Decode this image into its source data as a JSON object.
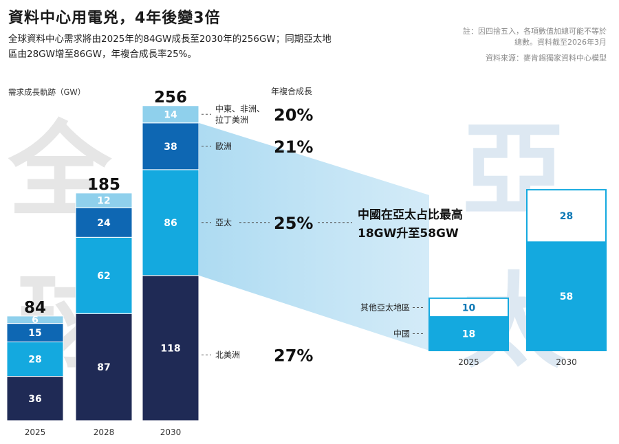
{
  "header": {
    "title": "資料中心用電兇，4年後變3倍",
    "subtitle": "全球資料中心需求將由2025年的84GW成長至2030年的256GW；同期亞太地區由28GW增至86GW，年複合成長率25%。",
    "note": "註：因四捨五入，各項數值加總可能不等於總數。資料截至2026年3月",
    "source": "資料來源：麥肯錫獨家資料中心模型"
  },
  "background_words": [
    "全球",
    "亞太"
  ],
  "chart_data": [
    {
      "type": "bar",
      "stacked": true,
      "ylabel": "需求成長軌跡（GW）",
      "categories": [
        "2025",
        "2028",
        "2030"
      ],
      "totals": [
        84,
        185,
        256
      ],
      "series": [
        {
          "name": "北美洲",
          "values": [
            36,
            87,
            118
          ],
          "color": "#1f2a55"
        },
        {
          "name": "亞太",
          "values": [
            28,
            62,
            86
          ],
          "color": "#14a9df"
        },
        {
          "name": "歐洲",
          "values": [
            15,
            24,
            38
          ],
          "color": "#0e67b3"
        },
        {
          "name": "中東、非洲、拉丁美洲",
          "values": [
            6,
            12,
            14
          ],
          "color": "#8fd0ec"
        }
      ],
      "cagr_header": "年複合成長",
      "cagr": [
        {
          "region": "中東、非洲、拉丁美洲",
          "value": "20%"
        },
        {
          "region": "歐洲",
          "value": "21%"
        },
        {
          "region": "亞太",
          "value": "25%"
        },
        {
          "region": "北美洲",
          "value": "27%"
        }
      ]
    },
    {
      "type": "bar",
      "stacked": true,
      "title": "中國在亞太占比最高 18GW升至58GW",
      "categories": [
        "2025",
        "2030"
      ],
      "series": [
        {
          "name": "中國",
          "values": [
            18,
            58
          ],
          "color": "#14a9df"
        },
        {
          "name": "其他亞太地區",
          "values": [
            10,
            28
          ],
          "color": "#ffffff"
        }
      ]
    }
  ]
}
